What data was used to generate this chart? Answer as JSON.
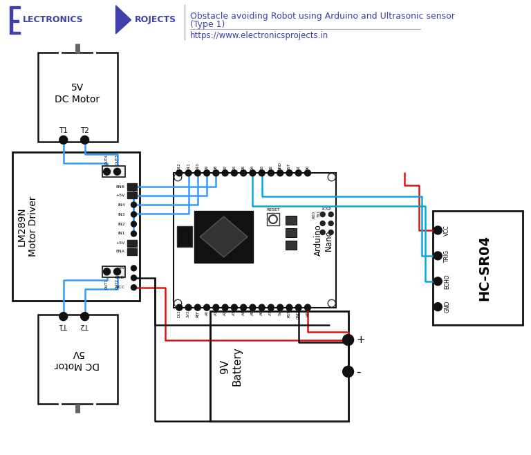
{
  "bg_color": "#ffffff",
  "hc": "#4040aa",
  "wire_blue": "#3399ff",
  "wire_cyan": "#00aadd",
  "wire_red": "#dd1111",
  "wire_black": "#111111",
  "title1": "Obstacle avoiding Robot using Arduino and Ultrasonic sensor",
  "title2": "(Type 1)",
  "subtitle": "https://www.electronicsprojects.in",
  "motor1_label": "5V\nDC Motor",
  "motor2_label": "DC Motor\n5V",
  "driver_label": "LM289N\nMotor Driver",
  "arduino_label": "Arduino\nNano",
  "sensor_label": "HC-SR04",
  "battery_label": "9V\nBattery"
}
